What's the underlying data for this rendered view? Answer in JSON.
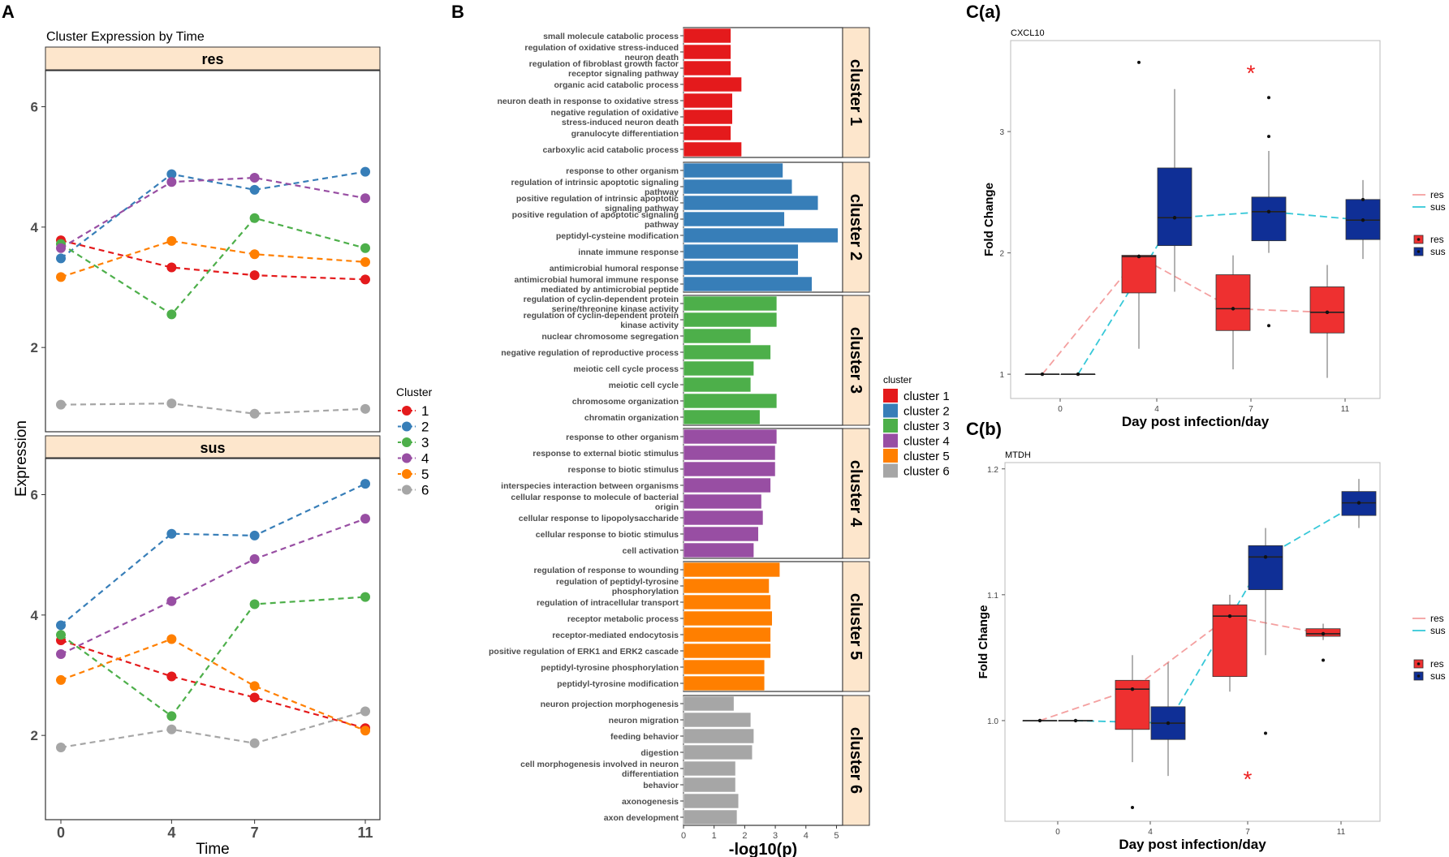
{
  "chart_data": [
    {
      "panel": "A",
      "type": "line",
      "title": "Cluster Expression by Time",
      "xlabel": "Time",
      "ylabel": "Expression",
      "x": [
        0,
        4,
        7,
        11
      ],
      "x_ticks": [
        "0",
        "4",
        "7",
        "11"
      ],
      "ylim": [
        0.6,
        6.6
      ],
      "y_ticks": [
        2,
        4,
        6
      ],
      "legend_title": "Cluster",
      "facets": [
        {
          "label": "res",
          "series": [
            {
              "name": "1",
              "color": "#e41a1c",
              "values": [
                3.78,
                3.33,
                3.2,
                3.13
              ]
            },
            {
              "name": "2",
              "color": "#377eb8",
              "values": [
                3.48,
                4.88,
                4.62,
                4.92
              ]
            },
            {
              "name": "3",
              "color": "#4daf4a",
              "values": [
                3.72,
                2.55,
                4.15,
                3.65
              ]
            },
            {
              "name": "4",
              "color": "#984ea3",
              "values": [
                3.65,
                4.75,
                4.82,
                4.48
              ]
            },
            {
              "name": "5",
              "color": "#ff7f00",
              "values": [
                3.17,
                3.77,
                3.55,
                3.42
              ]
            },
            {
              "name": "6",
              "color": "#a6a6a6",
              "values": [
                1.05,
                1.07,
                0.9,
                0.98
              ]
            }
          ]
        },
        {
          "label": "sus",
          "series": [
            {
              "name": "1",
              "color": "#e41a1c",
              "values": [
                3.58,
                2.98,
                2.63,
                2.12
              ]
            },
            {
              "name": "2",
              "color": "#377eb8",
              "values": [
                3.83,
                5.35,
                5.32,
                6.18
              ]
            },
            {
              "name": "3",
              "color": "#4daf4a",
              "values": [
                3.67,
                2.32,
                4.18,
                4.3
              ]
            },
            {
              "name": "4",
              "color": "#984ea3",
              "values": [
                3.35,
                4.23,
                4.93,
                5.6
              ]
            },
            {
              "name": "5",
              "color": "#ff7f00",
              "values": [
                2.92,
                3.6,
                2.82,
                2.08
              ]
            },
            {
              "name": "6",
              "color": "#a6a6a6",
              "values": [
                1.8,
                2.1,
                1.87,
                2.4
              ]
            }
          ]
        }
      ]
    },
    {
      "panel": "B",
      "type": "bar",
      "orientation": "horizontal",
      "xlabel": "-log10(p)",
      "xlim": [
        0,
        5.2
      ],
      "x_ticks": [
        "0",
        "1",
        "2",
        "3",
        "4",
        "5"
      ],
      "legend_title": "cluster",
      "facets": [
        {
          "label": "cluster 1",
          "color": "#e41a1c",
          "categories": [
            "small molecule catabolic process",
            "regulation of oxidative stress-induced neuron death",
            "regulation of fibroblast growth factor receptor signaling pathway",
            "organic acid catabolic process",
            "neuron death in response to oxidative stress",
            "negative regulation of oxidative stress-induced neuron death",
            "granulocyte differentiation",
            "carboxylic acid catabolic process"
          ],
          "values": [
            1.55,
            1.55,
            1.55,
            1.9,
            1.6,
            1.6,
            1.55,
            1.9
          ]
        },
        {
          "label": "cluster 2",
          "color": "#377eb8",
          "categories": [
            "response to other organism",
            "regulation of intrinsic apoptotic signaling pathway",
            "positive regulation of intrinsic apoptotic signaling pathway",
            "positive regulation of apoptotic signaling pathway",
            "peptidyl-cysteine modification",
            "innate immune response",
            "antimicrobial humoral response",
            "antimicrobial humoral immune response mediated by antimicrobial peptide"
          ],
          "values": [
            3.25,
            3.55,
            4.4,
            3.3,
            5.05,
            3.75,
            3.75,
            4.2
          ]
        },
        {
          "label": "cluster 3",
          "color": "#4daf4a",
          "categories": [
            "regulation of cyclin-dependent protein serine/threonine kinase activity",
            "regulation of cyclin-dependent protein kinase activity",
            "nuclear chromosome segregation",
            "negative regulation of reproductive process",
            "meiotic cell cycle process",
            "meiotic cell cycle",
            "chromosome organization",
            "chromatin organization"
          ],
          "values": [
            3.05,
            3.05,
            2.2,
            2.85,
            2.3,
            2.2,
            3.05,
            2.5
          ]
        },
        {
          "label": "cluster 4",
          "color": "#984ea3",
          "categories": [
            "response to other organism",
            "response to external biotic stimulus",
            "response to biotic stimulus",
            "interspecies interaction between organisms",
            "cellular response to molecule of bacterial origin",
            "cellular response to lipopolysaccharide",
            "cellular response to biotic stimulus",
            "cell activation"
          ],
          "values": [
            3.05,
            3.0,
            3.0,
            2.85,
            2.55,
            2.6,
            2.45,
            2.3
          ]
        },
        {
          "label": "cluster 5",
          "color": "#ff7f00",
          "categories": [
            "regulation of response to wounding",
            "regulation of peptidyl-tyrosine phosphorylation",
            "regulation of intracellular transport",
            "receptor metabolic process",
            "receptor-mediated endocytosis",
            "positive regulation of ERK1 and ERK2 cascade",
            "peptidyl-tyrosine phosphorylation",
            "peptidyl-tyrosine modification"
          ],
          "values": [
            3.15,
            2.8,
            2.85,
            2.9,
            2.85,
            2.85,
            2.65,
            2.65
          ]
        },
        {
          "label": "cluster 6",
          "color": "#a6a6a6",
          "categories": [
            "neuron projection morphogenesis",
            "neuron migration",
            "feeding behavior",
            "digestion",
            "cell morphogenesis involved in neuron differentiation",
            "behavior",
            "axonogenesis",
            "axon development"
          ],
          "values": [
            1.65,
            2.2,
            2.3,
            2.25,
            1.7,
            1.7,
            1.8,
            1.75
          ]
        }
      ],
      "legend": [
        "cluster 1",
        "cluster 2",
        "cluster 3",
        "cluster 4",
        "cluster 5",
        "cluster 6"
      ]
    },
    {
      "panel": "C(a)",
      "type": "box",
      "subtitle": "CXCL10",
      "xlabel": "Day post infection/day",
      "ylabel": "Fold Change",
      "x_ticks": [
        "0",
        "4",
        "7",
        "11"
      ],
      "ylim": [
        0.8,
        3.75
      ],
      "y_ticks": [
        "1",
        "2",
        "3"
      ],
      "y_tick_values": [
        1,
        2,
        3
      ],
      "legend_lines": [
        "res",
        "sus"
      ],
      "legend_boxes": [
        "res",
        "sus"
      ],
      "significance_marker": "*",
      "significance_at": {
        "day": "7",
        "value": 3.5
      },
      "series": [
        {
          "name": "res",
          "color": "#ee3030",
          "line_color": "#f4a0a0",
          "boxes": [
            {
              "day": "0",
              "q1": 1.0,
              "median": 1.0,
              "q3": 1.0,
              "low": 1.0,
              "high": 1.0,
              "mean": 1.0,
              "outliers": []
            },
            {
              "day": "4",
              "q1": 1.67,
              "median": 1.97,
              "q3": 1.98,
              "low": 1.21,
              "high": 1.99,
              "mean": 1.97,
              "outliers": [
                3.57
              ]
            },
            {
              "day": "7",
              "q1": 1.36,
              "median": 1.54,
              "q3": 1.82,
              "low": 1.04,
              "high": 1.98,
              "mean": 1.54,
              "outliers": []
            },
            {
              "day": "11",
              "q1": 1.34,
              "median": 1.51,
              "q3": 1.72,
              "low": 0.97,
              "high": 1.9,
              "mean": 1.51,
              "outliers": []
            }
          ]
        },
        {
          "name": "sus",
          "color": "#0f2f96",
          "line_color": "#36c8d8",
          "boxes": [
            {
              "day": "0",
              "q1": 1.0,
              "median": 1.0,
              "q3": 1.0,
              "low": 1.0,
              "high": 1.0,
              "mean": 1.0,
              "outliers": []
            },
            {
              "day": "4",
              "q1": 2.06,
              "median": 2.29,
              "q3": 2.7,
              "low": 1.68,
              "high": 3.35,
              "mean": 2.29,
              "outliers": []
            },
            {
              "day": "7",
              "q1": 2.1,
              "median": 2.34,
              "q3": 2.46,
              "low": 2.0,
              "high": 2.84,
              "mean": 2.34,
              "outliers": [
                3.28,
                2.96,
                1.4
              ]
            },
            {
              "day": "11",
              "q1": 2.11,
              "median": 2.27,
              "q3": 2.44,
              "low": 1.95,
              "high": 2.6,
              "mean": 2.27,
              "outliers": [
                2.44
              ]
            }
          ]
        }
      ]
    },
    {
      "panel": "C(b)",
      "type": "box",
      "subtitle": "MTDH",
      "xlabel": "Day post infection/day",
      "ylabel": "Fold Change",
      "x_ticks": [
        "0",
        "4",
        "7",
        "11"
      ],
      "ylim": [
        0.92,
        1.205
      ],
      "y_ticks": [
        "1.0",
        "1.1",
        "1.2"
      ],
      "y_tick_values": [
        1.0,
        1.1,
        1.2
      ],
      "legend_lines": [
        "res",
        "sus"
      ],
      "legend_boxes": [
        "res",
        "sus"
      ],
      "significance_marker": "*",
      "significance_at": {
        "day": "7",
        "value": 0.955
      },
      "series": [
        {
          "name": "res",
          "color": "#ee3030",
          "line_color": "#f4a0a0",
          "boxes": [
            {
              "day": "0",
              "q1": 1.0,
              "median": 1.0,
              "q3": 1.0,
              "low": 1.0,
              "high": 1.0,
              "mean": 1.0,
              "outliers": []
            },
            {
              "day": "4",
              "q1": 0.993,
              "median": 1.025,
              "q3": 1.032,
              "low": 0.967,
              "high": 1.052,
              "mean": 1.025,
              "outliers": [
                0.931
              ]
            },
            {
              "day": "7",
              "q1": 1.035,
              "median": 1.083,
              "q3": 1.092,
              "low": 1.023,
              "high": 1.1,
              "mean": 1.083,
              "outliers": []
            },
            {
              "day": "11",
              "q1": 1.067,
              "median": 1.069,
              "q3": 1.073,
              "low": 1.064,
              "high": 1.077,
              "mean": 1.069,
              "outliers": [
                1.048
              ]
            }
          ]
        },
        {
          "name": "sus",
          "color": "#0f2f96",
          "line_color": "#36c8d8",
          "boxes": [
            {
              "day": "0",
              "q1": 1.0,
              "median": 1.0,
              "q3": 1.0,
              "low": 1.0,
              "high": 1.0,
              "mean": 1.0,
              "outliers": []
            },
            {
              "day": "4",
              "q1": 0.985,
              "median": 0.998,
              "q3": 1.011,
              "low": 0.956,
              "high": 1.046,
              "mean": 0.998,
              "outliers": []
            },
            {
              "day": "7",
              "q1": 1.104,
              "median": 1.13,
              "q3": 1.139,
              "low": 1.052,
              "high": 1.153,
              "mean": 1.13,
              "outliers": [
                0.99
              ]
            },
            {
              "day": "11",
              "q1": 1.163,
              "median": 1.173,
              "q3": 1.182,
              "low": 1.153,
              "high": 1.192,
              "mean": 1.173,
              "outliers": []
            }
          ]
        }
      ]
    }
  ]
}
